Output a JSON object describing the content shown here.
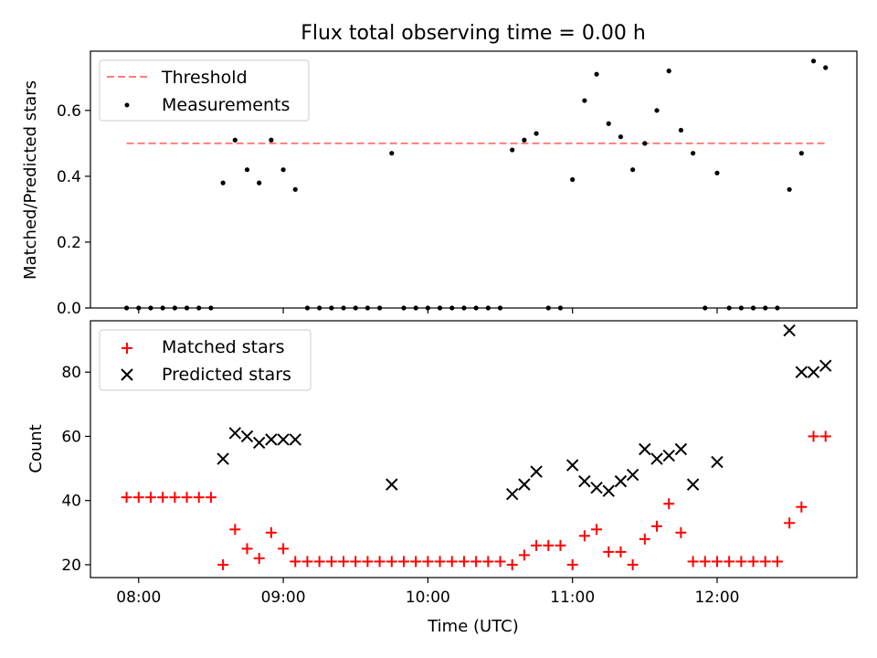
{
  "title": "Flux total observing time = 0.00 h",
  "chart_data": [
    {
      "type": "scatter",
      "ylabel": "Matched/Predicted stars",
      "xlabel": "",
      "ylim": [
        0,
        0.78
      ],
      "yticks": [
        "0.0",
        "0.2",
        "0.4",
        "0.6"
      ],
      "xlim": [
        "07:40",
        "12:58"
      ],
      "legend_position": "top-left",
      "series": [
        {
          "name": "Threshold",
          "style": "dashed-line",
          "color": "#ff7f7f",
          "points": [
            [
              "07:55",
              0.5
            ],
            [
              "12:45",
              0.5
            ]
          ]
        },
        {
          "name": "Measurements",
          "style": "dot",
          "color": "#000000",
          "points": [
            [
              "07:55",
              0.0
            ],
            [
              "08:00",
              0.0
            ],
            [
              "08:05",
              0.0
            ],
            [
              "08:10",
              0.0
            ],
            [
              "08:15",
              0.0
            ],
            [
              "08:20",
              0.0
            ],
            [
              "08:25",
              0.0
            ],
            [
              "08:30",
              0.0
            ],
            [
              "08:35",
              0.38
            ],
            [
              "08:40",
              0.51
            ],
            [
              "08:45",
              0.42
            ],
            [
              "08:50",
              0.38
            ],
            [
              "08:55",
              0.51
            ],
            [
              "09:00",
              0.42
            ],
            [
              "09:05",
              0.36
            ],
            [
              "09:10",
              0.0
            ],
            [
              "09:15",
              0.0
            ],
            [
              "09:20",
              0.0
            ],
            [
              "09:25",
              0.0
            ],
            [
              "09:30",
              0.0
            ],
            [
              "09:35",
              0.0
            ],
            [
              "09:40",
              0.0
            ],
            [
              "09:45",
              0.47
            ],
            [
              "09:50",
              0.0
            ],
            [
              "09:55",
              0.0
            ],
            [
              "10:00",
              0.0
            ],
            [
              "10:05",
              0.0
            ],
            [
              "10:10",
              0.0
            ],
            [
              "10:15",
              0.0
            ],
            [
              "10:20",
              0.0
            ],
            [
              "10:25",
              0.0
            ],
            [
              "10:30",
              0.0
            ],
            [
              "10:35",
              0.48
            ],
            [
              "10:40",
              0.51
            ],
            [
              "10:45",
              0.53
            ],
            [
              "10:50",
              0.0
            ],
            [
              "10:55",
              0.0
            ],
            [
              "11:00",
              0.39
            ],
            [
              "11:05",
              0.63
            ],
            [
              "11:10",
              0.71
            ],
            [
              "11:15",
              0.56
            ],
            [
              "11:20",
              0.52
            ],
            [
              "11:25",
              0.42
            ],
            [
              "11:30",
              0.5
            ],
            [
              "11:35",
              0.6
            ],
            [
              "11:40",
              0.72
            ],
            [
              "11:45",
              0.54
            ],
            [
              "11:50",
              0.47
            ],
            [
              "11:55",
              0.0
            ],
            [
              "12:00",
              0.41
            ],
            [
              "12:05",
              0.0
            ],
            [
              "12:10",
              0.0
            ],
            [
              "12:15",
              0.0
            ],
            [
              "12:20",
              0.0
            ],
            [
              "12:25",
              0.0
            ],
            [
              "12:30",
              0.36
            ],
            [
              "12:35",
              0.47
            ],
            [
              "12:40",
              0.75
            ],
            [
              "12:45",
              0.73
            ]
          ]
        }
      ]
    },
    {
      "type": "scatter",
      "ylabel": "Count",
      "xlabel": "Time (UTC)",
      "ylim": [
        16,
        96
      ],
      "yticks": [
        "20",
        "40",
        "60",
        "80"
      ],
      "xlim": [
        "07:40",
        "12:58"
      ],
      "xticks": [
        "08:00",
        "09:00",
        "10:00",
        "11:00",
        "12:00"
      ],
      "legend_position": "top-left",
      "series": [
        {
          "name": "Matched stars",
          "style": "plus",
          "color": "#ff0000",
          "points": [
            [
              "07:55",
              41
            ],
            [
              "08:00",
              41
            ],
            [
              "08:05",
              41
            ],
            [
              "08:10",
              41
            ],
            [
              "08:15",
              41
            ],
            [
              "08:20",
              41
            ],
            [
              "08:25",
              41
            ],
            [
              "08:30",
              41
            ],
            [
              "08:35",
              20
            ],
            [
              "08:40",
              31
            ],
            [
              "08:45",
              25
            ],
            [
              "08:50",
              22
            ],
            [
              "08:55",
              30
            ],
            [
              "09:00",
              25
            ],
            [
              "09:05",
              21
            ],
            [
              "09:10",
              21
            ],
            [
              "09:15",
              21
            ],
            [
              "09:20",
              21
            ],
            [
              "09:25",
              21
            ],
            [
              "09:30",
              21
            ],
            [
              "09:35",
              21
            ],
            [
              "09:40",
              21
            ],
            [
              "09:45",
              21
            ],
            [
              "09:50",
              21
            ],
            [
              "09:55",
              21
            ],
            [
              "10:00",
              21
            ],
            [
              "10:05",
              21
            ],
            [
              "10:10",
              21
            ],
            [
              "10:15",
              21
            ],
            [
              "10:20",
              21
            ],
            [
              "10:25",
              21
            ],
            [
              "10:30",
              21
            ],
            [
              "10:35",
              20
            ],
            [
              "10:40",
              23
            ],
            [
              "10:45",
              26
            ],
            [
              "10:50",
              26
            ],
            [
              "10:55",
              26
            ],
            [
              "11:00",
              20
            ],
            [
              "11:05",
              29
            ],
            [
              "11:10",
              31
            ],
            [
              "11:15",
              24
            ],
            [
              "11:20",
              24
            ],
            [
              "11:25",
              20
            ],
            [
              "11:30",
              28
            ],
            [
              "11:35",
              32
            ],
            [
              "11:40",
              39
            ],
            [
              "11:45",
              30
            ],
            [
              "11:50",
              21
            ],
            [
              "11:55",
              21
            ],
            [
              "12:00",
              21
            ],
            [
              "12:05",
              21
            ],
            [
              "12:10",
              21
            ],
            [
              "12:15",
              21
            ],
            [
              "12:20",
              21
            ],
            [
              "12:25",
              21
            ],
            [
              "12:30",
              33
            ],
            [
              "12:35",
              38
            ],
            [
              "12:40",
              60
            ],
            [
              "12:45",
              60
            ]
          ]
        },
        {
          "name": "Predicted stars",
          "style": "x",
          "color": "#000000",
          "points": [
            [
              "08:35",
              53
            ],
            [
              "08:40",
              61
            ],
            [
              "08:45",
              60
            ],
            [
              "08:50",
              58
            ],
            [
              "08:55",
              59
            ],
            [
              "09:00",
              59
            ],
            [
              "09:05",
              59
            ],
            [
              "09:45",
              45
            ],
            [
              "10:35",
              42
            ],
            [
              "10:40",
              45
            ],
            [
              "10:45",
              49
            ],
            [
              "11:00",
              51
            ],
            [
              "11:05",
              46
            ],
            [
              "11:10",
              44
            ],
            [
              "11:15",
              43
            ],
            [
              "11:20",
              46
            ],
            [
              "11:25",
              48
            ],
            [
              "11:30",
              56
            ],
            [
              "11:35",
              53
            ],
            [
              "11:40",
              54
            ],
            [
              "11:45",
              56
            ],
            [
              "11:50",
              45
            ],
            [
              "12:00",
              52
            ],
            [
              "12:30",
              93
            ],
            [
              "12:35",
              80
            ],
            [
              "12:40",
              80
            ],
            [
              "12:45",
              82
            ]
          ]
        }
      ]
    }
  ]
}
